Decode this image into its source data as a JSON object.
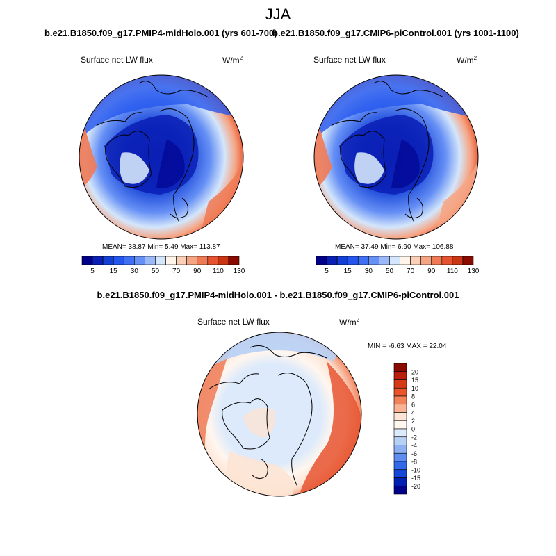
{
  "figure": {
    "title": "JJA"
  },
  "panels": [
    {
      "case_title": "b.e21.B1850.f09_g17.PMIP4-midHolo.001 (yrs 601-700)",
      "variable": "Surface net LW flux",
      "units": "W/m",
      "units_exp": "2",
      "stats": "MEAN=  38.87  Min=   5.49  Max= 113.87",
      "colorbar_ticks": [
        "5",
        "15",
        "30",
        "50",
        "70",
        "90",
        "110",
        "130"
      ]
    },
    {
      "case_title": "b.e21.B1850.f09_g17.CMIP6-piControl.001 (yrs 1001-1100)",
      "variable": "Surface net LW flux",
      "units": "W/m",
      "units_exp": "2",
      "stats": "MEAN=  37.49  Min=   6.90  Max= 106.88",
      "colorbar_ticks": [
        "5",
        "15",
        "30",
        "50",
        "70",
        "90",
        "110",
        "130"
      ]
    }
  ],
  "difference": {
    "title": "b.e21.B1850.f09_g17.PMIP4-midHolo.001 - b.e21.B1850.f09_g17.CMIP6-piControl.001",
    "variable": "Surface net LW flux",
    "units": "W/m",
    "units_exp": "2",
    "minmax": "MIN =  -6.63 MAX =  22.04",
    "colorbar_ticks": [
      "20",
      "15",
      "10",
      "8",
      "6",
      "4",
      "2",
      "0",
      "-2",
      "-4",
      "-6",
      "-8",
      "-10",
      "-15",
      "-20"
    ]
  },
  "colors": {
    "main_scale": [
      "#00008b",
      "#0a1fb4",
      "#123fd6",
      "#2456ee",
      "#3f6ff2",
      "#6690f5",
      "#9bb8f8",
      "#d4e6fb",
      "#fff4ea",
      "#fcd0b7",
      "#f6a584",
      "#ef7a55",
      "#e65330",
      "#cc3514",
      "#8b0a00"
    ],
    "diff_scale": [
      "#8b0a00",
      "#b8200c",
      "#d63a14",
      "#e8552b",
      "#f2825a",
      "#f9b294",
      "#fde4d4",
      "#fff6ef",
      "#dceafb",
      "#b7d0f6",
      "#8cb0f1",
      "#5f8def",
      "#3468ea",
      "#1446d8",
      "#0020b2",
      "#00008b"
    ]
  }
}
